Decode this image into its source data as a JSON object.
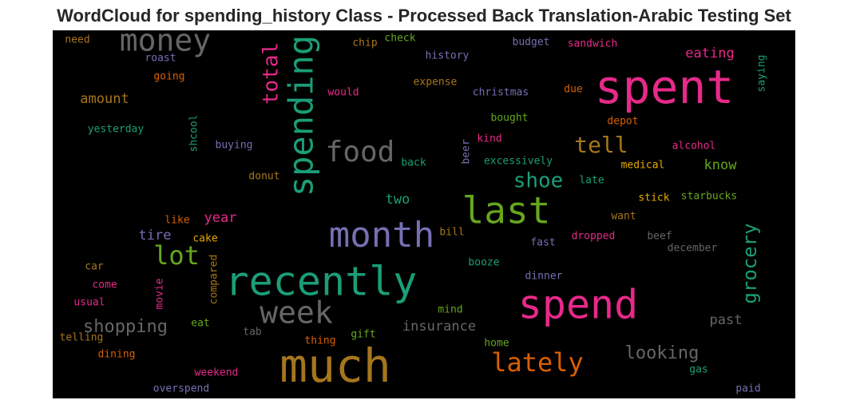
{
  "chart_data": {
    "type": "wordcloud",
    "title": "WordCloud for spending_history Class - Processed Back Translation-Arabic Testing Set",
    "background": "#000000",
    "words": [
      {
        "text": "need",
        "color": "#a6761d"
      },
      {
        "text": "money",
        "color": "#666666"
      },
      {
        "text": "roast",
        "color": "#7570b3"
      },
      {
        "text": "chip",
        "color": "#a6761d"
      },
      {
        "text": "check",
        "color": "#66a61e"
      },
      {
        "text": "history",
        "color": "#7570b3"
      },
      {
        "text": "budget",
        "color": "#7570b3"
      },
      {
        "text": "sandwich",
        "color": "#e7298a"
      },
      {
        "text": "eating",
        "color": "#e7298a"
      },
      {
        "text": "spent",
        "color": "#e7298a"
      },
      {
        "text": "saying",
        "color": "#1b9e77"
      },
      {
        "text": "spending",
        "color": "#1b9e77"
      },
      {
        "text": "total",
        "color": "#e7298a"
      },
      {
        "text": "going",
        "color": "#d95f02"
      },
      {
        "text": "expense",
        "color": "#a6761d"
      },
      {
        "text": "would",
        "color": "#e7298a"
      },
      {
        "text": "christmas",
        "color": "#7570b3"
      },
      {
        "text": "due",
        "color": "#d95f02"
      },
      {
        "text": "amount",
        "color": "#a6761d"
      },
      {
        "text": "bought",
        "color": "#66a61e"
      },
      {
        "text": "depot",
        "color": "#d95f02"
      },
      {
        "text": "shcool",
        "color": "#1b9e77"
      },
      {
        "text": "yesterday",
        "color": "#1b9e77"
      },
      {
        "text": "food",
        "color": "#666666"
      },
      {
        "text": "tell",
        "color": "#a6761d"
      },
      {
        "text": "kind",
        "color": "#e7298a"
      },
      {
        "text": "alcohol",
        "color": "#e7298a"
      },
      {
        "text": "buying",
        "color": "#7570b3"
      },
      {
        "text": "beer",
        "color": "#7570b3"
      },
      {
        "text": "back",
        "color": "#1b9e77"
      },
      {
        "text": "excessively",
        "color": "#1b9e77"
      },
      {
        "text": "medical",
        "color": "#e6ab02"
      },
      {
        "text": "know",
        "color": "#66a61e"
      },
      {
        "text": "donut",
        "color": "#a6761d"
      },
      {
        "text": "shoe",
        "color": "#1b9e77"
      },
      {
        "text": "late",
        "color": "#1b9e77"
      },
      {
        "text": "two",
        "color": "#1b9e77"
      },
      {
        "text": "stick",
        "color": "#e6ab02"
      },
      {
        "text": "starbucks",
        "color": "#66a61e"
      },
      {
        "text": "last",
        "color": "#66a61e"
      },
      {
        "text": "year",
        "color": "#e7298a"
      },
      {
        "text": "like",
        "color": "#d95f02"
      },
      {
        "text": "want",
        "color": "#a6761d"
      },
      {
        "text": "tire",
        "color": "#7570b3"
      },
      {
        "text": "month",
        "color": "#7570b3"
      },
      {
        "text": "bill",
        "color": "#a6761d"
      },
      {
        "text": "cake",
        "color": "#e6ab02"
      },
      {
        "text": "fast",
        "color": "#7570b3"
      },
      {
        "text": "dropped",
        "color": "#e7298a"
      },
      {
        "text": "beef",
        "color": "#666666"
      },
      {
        "text": "grocery",
        "color": "#1b9e77"
      },
      {
        "text": "lot",
        "color": "#66a61e"
      },
      {
        "text": "december",
        "color": "#666666"
      },
      {
        "text": "car",
        "color": "#a6761d"
      },
      {
        "text": "booze",
        "color": "#1b9e77"
      },
      {
        "text": "compared",
        "color": "#a6761d"
      },
      {
        "text": "recently",
        "color": "#1b9e77"
      },
      {
        "text": "dinner",
        "color": "#7570b3"
      },
      {
        "text": "come",
        "color": "#e7298a"
      },
      {
        "text": "movie",
        "color": "#e7298a"
      },
      {
        "text": "usual",
        "color": "#e7298a"
      },
      {
        "text": "spend",
        "color": "#e7298a"
      },
      {
        "text": "week",
        "color": "#666666"
      },
      {
        "text": "mind",
        "color": "#66a61e"
      },
      {
        "text": "shopping",
        "color": "#666666"
      },
      {
        "text": "eat",
        "color": "#66a61e"
      },
      {
        "text": "insurance",
        "color": "#666666"
      },
      {
        "text": "past",
        "color": "#666666"
      },
      {
        "text": "tab",
        "color": "#666666"
      },
      {
        "text": "gift",
        "color": "#66a61e"
      },
      {
        "text": "telling",
        "color": "#a6761d"
      },
      {
        "text": "thing",
        "color": "#d95f02"
      },
      {
        "text": "home",
        "color": "#66a61e"
      },
      {
        "text": "dining",
        "color": "#d95f02"
      },
      {
        "text": "looking",
        "color": "#666666"
      },
      {
        "text": "much",
        "color": "#a6761d"
      },
      {
        "text": "lately",
        "color": "#d95f02"
      },
      {
        "text": "weekend",
        "color": "#e7298a"
      },
      {
        "text": "gas",
        "color": "#1b9e77"
      },
      {
        "text": "overspend",
        "color": "#7570b3"
      },
      {
        "text": "paid",
        "color": "#7570b3"
      }
    ]
  }
}
